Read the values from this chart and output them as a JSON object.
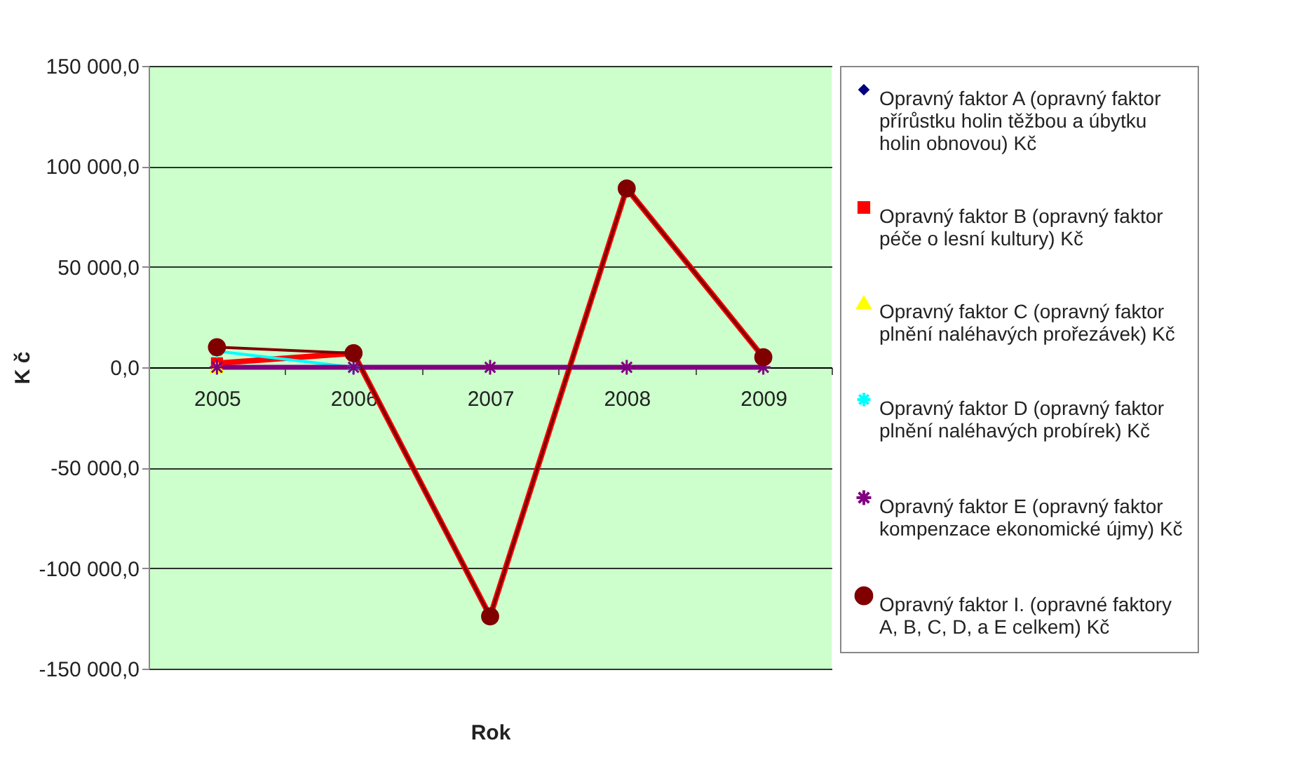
{
  "chart_data": {
    "type": "line",
    "xlabel": "Rok",
    "ylabel": "K č",
    "categories": [
      "2005",
      "2006",
      "2007",
      "2008",
      "2009"
    ],
    "series": [
      {
        "name": "Opravný faktor A (opravný faktor přírůstku holin těžbou a úbytku holin obnovou) Kč",
        "color": "#000080",
        "marker": "diamond",
        "values": [
          null,
          null,
          null,
          null,
          null
        ]
      },
      {
        "name": "Opravný faktor B (opravný faktor péče o lesní kultury) Kč",
        "color": "#ff0000",
        "marker": "square",
        "values": [
          2000,
          7000,
          -124000,
          89000,
          5000
        ]
      },
      {
        "name": "Opravný faktor C (opravný faktor plnění naléhavých prořezávek) Kč",
        "color": "#ffff00",
        "marker": "triangle",
        "values": [
          0,
          null,
          null,
          null,
          null
        ]
      },
      {
        "name": "Opravný faktor D (opravný faktor plnění naléhavých probírek) Kč",
        "color": "#00ffff",
        "marker": "cross",
        "values": [
          8000,
          0,
          null,
          null,
          null
        ]
      },
      {
        "name": "Opravný faktor E (opravný faktor kompenzace ekonomické újmy) Kč",
        "color": "#800080",
        "marker": "cross",
        "values": [
          0,
          0,
          0,
          0,
          0
        ]
      },
      {
        "name": "Opravný faktor I. (opravné faktory A, B, C, D, a E celkem) Kč",
        "color": "#800000",
        "marker": "circle",
        "values": [
          10000,
          7000,
          -124000,
          89000,
          5000
        ]
      }
    ],
    "ylim": [
      -150000,
      150000
    ],
    "yticks": [
      {
        "value": -150000,
        "label": "-150 000,0"
      },
      {
        "value": -100000,
        "label": "-100 000,0"
      },
      {
        "value": -50000,
        "label": "-50 000,0"
      },
      {
        "value": 0,
        "label": "0,0"
      },
      {
        "value": 50000,
        "label": "50 000,0"
      },
      {
        "value": 100000,
        "label": "100 000,0"
      },
      {
        "value": 150000,
        "label": "150 000,0"
      }
    ],
    "grid": "y",
    "legend": "right",
    "line_style": "solid"
  }
}
